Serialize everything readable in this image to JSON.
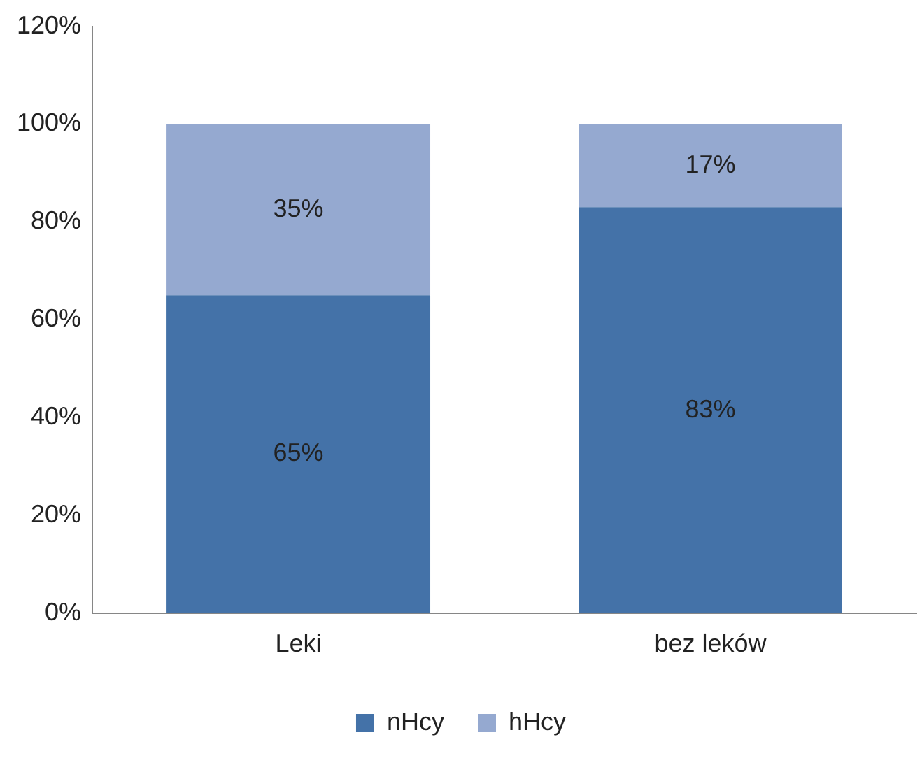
{
  "chart_data": {
    "type": "bar",
    "stacked": true,
    "categories": [
      "Leki",
      "bez leków"
    ],
    "series": [
      {
        "name": "nHcy",
        "color": "#4472a8",
        "values": [
          65,
          83
        ],
        "value_labels": [
          "65%",
          "83%"
        ]
      },
      {
        "name": "hHcy",
        "color": "#95a9d0",
        "values": [
          35,
          17
        ],
        "value_labels": [
          "35%",
          "17%"
        ]
      }
    ],
    "ylim": [
      0,
      120
    ],
    "yticks": [
      {
        "value": 0,
        "label": "0%"
      },
      {
        "value": 20,
        "label": "20%"
      },
      {
        "value": 40,
        "label": "40%"
      },
      {
        "value": 60,
        "label": "60%"
      },
      {
        "value": 80,
        "label": "80%"
      },
      {
        "value": 100,
        "label": "100%"
      },
      {
        "value": 120,
        "label": "120%"
      }
    ],
    "grid": false,
    "legend": "bottom"
  }
}
